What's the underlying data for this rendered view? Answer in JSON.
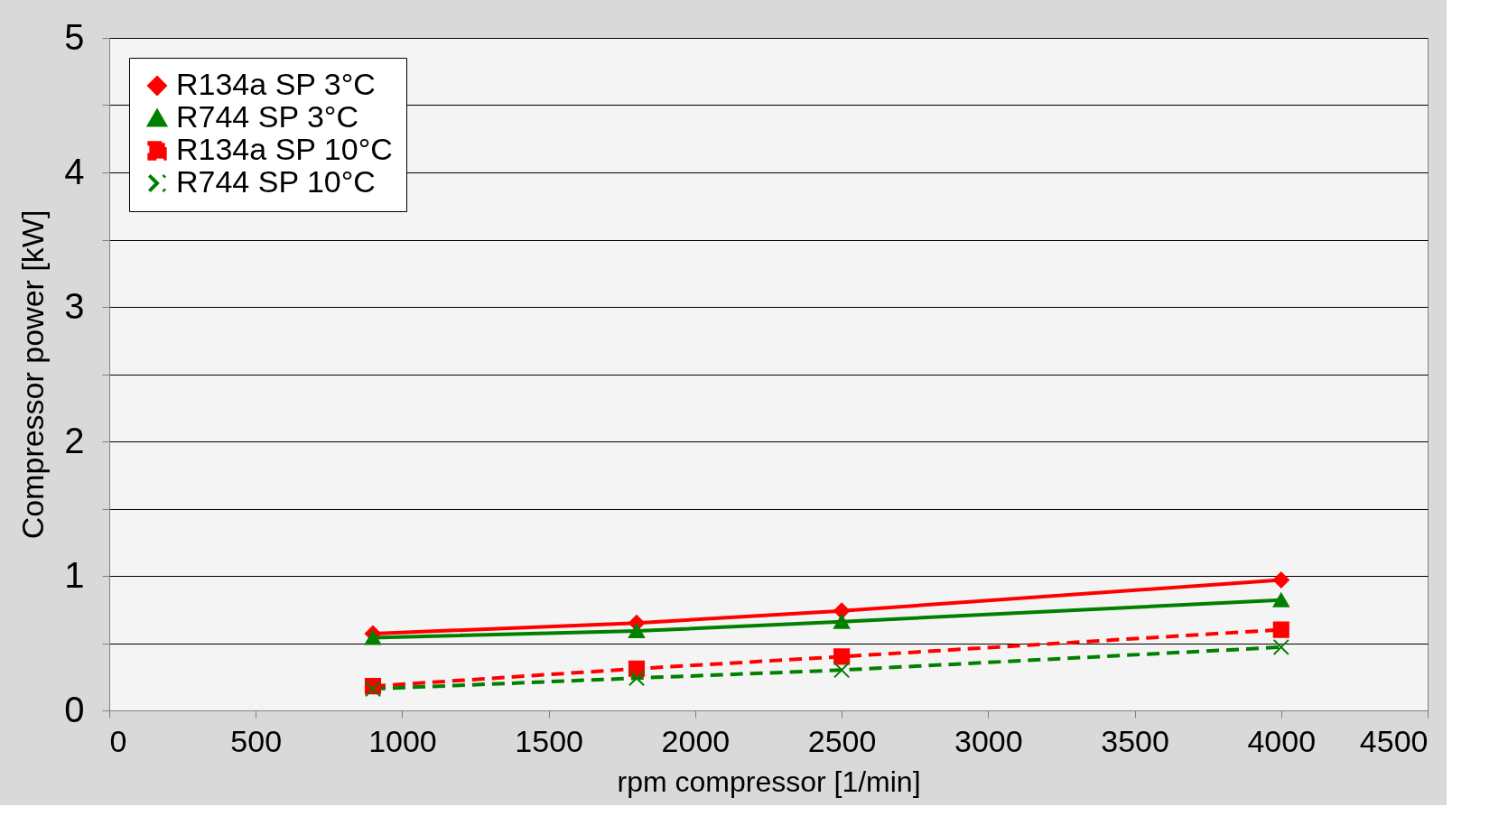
{
  "chart_data": {
    "type": "line",
    "xlabel": "rpm compressor [1/min]",
    "ylabel": "Compressor power [kW]",
    "x": [
      900,
      1800,
      2500,
      4000
    ],
    "series": [
      {
        "name": "R134a SP 3°C",
        "color": "#ff0000",
        "marker": "diamond",
        "line_style": "solid",
        "values": [
          0.57,
          0.65,
          0.74,
          0.97
        ]
      },
      {
        "name": "R744 SP 3°C",
        "color": "#008000",
        "marker": "triangle",
        "line_style": "solid",
        "values": [
          0.54,
          0.59,
          0.66,
          0.82
        ]
      },
      {
        "name": "R134a SP 10°C",
        "color": "#ff0000",
        "marker": "square",
        "line_style": "dashed",
        "values": [
          0.18,
          0.31,
          0.4,
          0.6
        ]
      },
      {
        "name": "R744 SP 10°C",
        "color": "#008000",
        "marker": "cross",
        "line_style": "dashed",
        "values": [
          0.16,
          0.24,
          0.3,
          0.47
        ]
      }
    ],
    "xlim": [
      0,
      4500
    ],
    "xticks": [
      0,
      500,
      1000,
      1500,
      2000,
      2500,
      3000,
      3500,
      4000,
      4500
    ],
    "ylim": [
      0,
      5
    ],
    "yticks": [
      0,
      {
        "value": 0.5,
        "label": null
      },
      1,
      {
        "value": 1.5,
        "label": null
      },
      2,
      {
        "value": 2.5,
        "label": null
      },
      3,
      {
        "value": 3.5,
        "label": null
      },
      4,
      {
        "value": 4.5,
        "label": null
      },
      5
    ],
    "grid": "y",
    "legend": "top left"
  }
}
